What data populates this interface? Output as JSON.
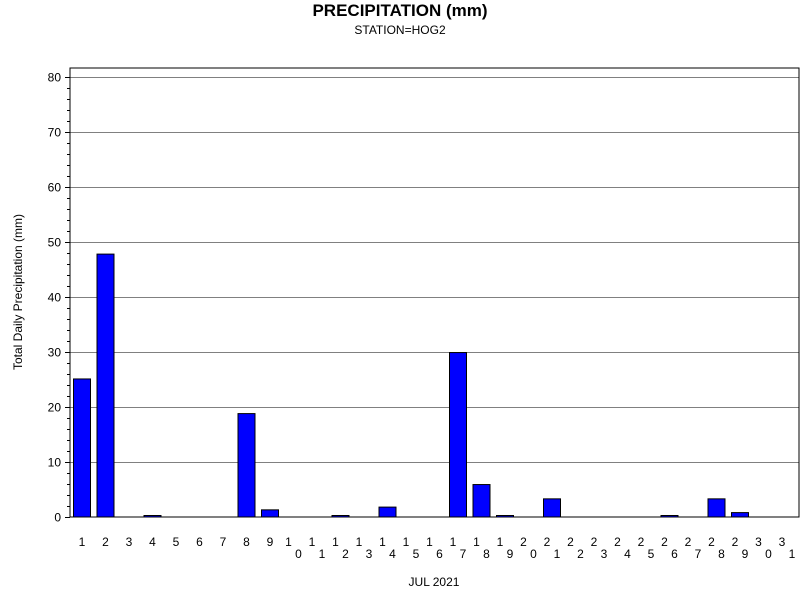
{
  "chart_data": {
    "type": "bar",
    "title": "PRECIPITATION (mm)",
    "subtitle": "STATION=HOG2",
    "xlabel": "JUL 2021",
    "ylabel": "Total Daily Precipitation (mm)",
    "ylim": [
      0,
      80
    ],
    "yticks": [
      0,
      10,
      20,
      30,
      40,
      50,
      60,
      70,
      80
    ],
    "grid": true,
    "bar_color": "#0000ff",
    "categories": [
      "1",
      "2",
      "3",
      "4",
      "5",
      "6",
      "7",
      "8",
      "9",
      "10",
      "11",
      "12",
      "13",
      "14",
      "15",
      "16",
      "17",
      "18",
      "19",
      "20",
      "21",
      "22",
      "23",
      "24",
      "25",
      "26",
      "27",
      "28",
      "29",
      "30",
      "31"
    ],
    "values": [
      25.1,
      47.8,
      0,
      0.2,
      0,
      0,
      0,
      18.8,
      1.3,
      0,
      0,
      0.2,
      0,
      1.8,
      0,
      0,
      29.9,
      5.9,
      0.1,
      0,
      3.3,
      0,
      0,
      0,
      0,
      0.1,
      0,
      3.3,
      0.8,
      0,
      0
    ]
  }
}
